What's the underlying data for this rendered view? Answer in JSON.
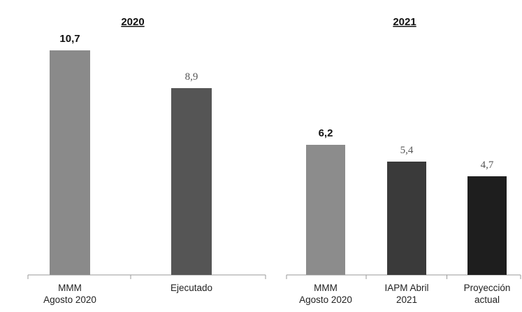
{
  "chart_data": [
    {
      "type": "bar",
      "title": "2020",
      "categories": [
        [
          "MMM",
          "Agosto 2020"
        ],
        [
          "Ejecutado"
        ]
      ],
      "values": [
        10.7,
        8.9
      ],
      "value_labels": [
        "10,7",
        "8,9"
      ],
      "value_label_styles": [
        "bold",
        "serif"
      ],
      "colors": [
        "#8a8a8a",
        "#555555"
      ],
      "ylim": [
        0,
        12
      ]
    },
    {
      "type": "bar",
      "title": "2021",
      "categories": [
        [
          "MMM",
          "Agosto 2020"
        ],
        [
          "IAPM Abril",
          "2021"
        ],
        [
          "Proyección",
          "actual"
        ]
      ],
      "values": [
        6.2,
        5.4,
        4.7
      ],
      "value_labels": [
        "6,2",
        "5,4",
        "4,7"
      ],
      "value_label_styles": [
        "bold",
        "serif",
        "serif"
      ],
      "colors": [
        "#8c8c8c",
        "#3a3a3a",
        "#1e1e1e"
      ],
      "ylim": [
        0,
        12
      ]
    }
  ]
}
